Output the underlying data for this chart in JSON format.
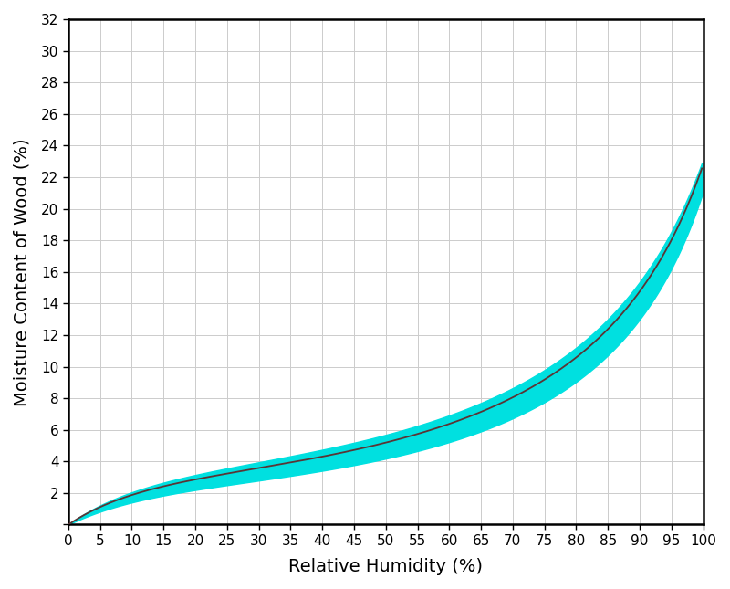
{
  "xlabel": "Relative Humidity (%)",
  "ylabel": "Moisture Content of Wood (%)",
  "xlim": [
    0,
    100
  ],
  "ylim": [
    0,
    32
  ],
  "xticks": [
    0,
    5,
    10,
    15,
    20,
    25,
    30,
    35,
    40,
    45,
    50,
    55,
    60,
    65,
    70,
    75,
    80,
    85,
    90,
    95,
    100
  ],
  "yticks": [
    0,
    2,
    4,
    6,
    8,
    10,
    12,
    14,
    16,
    18,
    20,
    22,
    24,
    26,
    28,
    30,
    32
  ],
  "line_color": "#5a3535",
  "fill_color": "#00e0e0",
  "fill_alpha": 1.0,
  "background_color": "#ffffff",
  "grid_color": "#cccccc",
  "label_fontsize": 14,
  "tick_fontsize": 11,
  "figsize": [
    8.0,
    6.45
  ],
  "dpi": 100
}
